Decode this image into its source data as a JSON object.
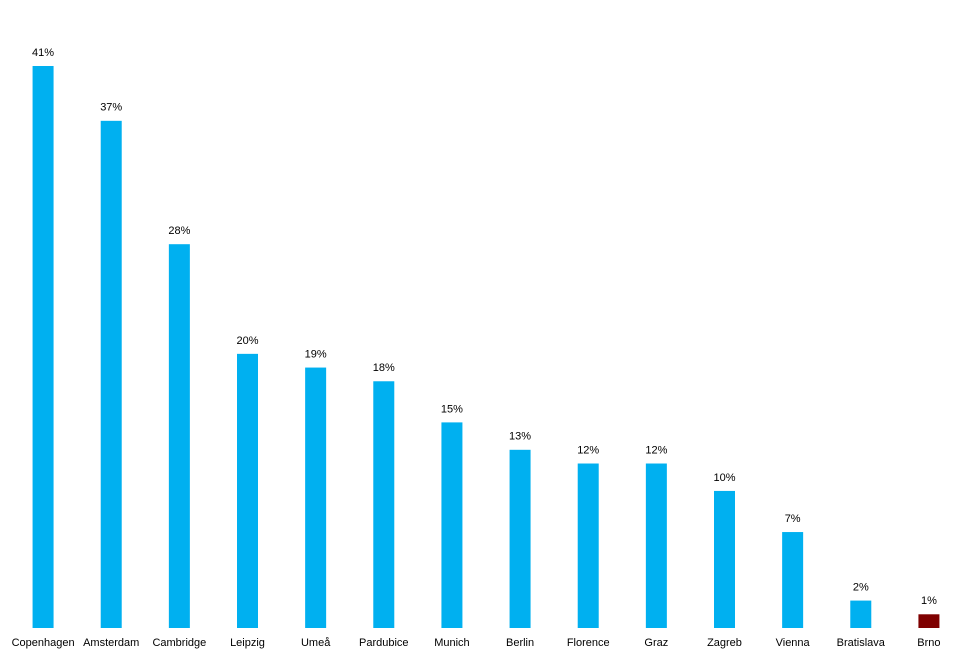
{
  "chart_data": {
    "type": "bar",
    "categories": [
      "Copenhagen",
      "Amsterdam",
      "Cambridge",
      "Leipzig",
      "Umeå",
      "Pardubice",
      "Munich",
      "Berlin",
      "Florence",
      "Graz",
      "Zagreb",
      "Vienna",
      "Bratislava",
      "Brno"
    ],
    "values": [
      41,
      37,
      28,
      20,
      19,
      18,
      15,
      13,
      12,
      12,
      10,
      7,
      2,
      1
    ],
    "value_labels": [
      "41%",
      "37%",
      "28%",
      "20%",
      "19%",
      "18%",
      "15%",
      "13%",
      "12%",
      "12%",
      "10%",
      "7%",
      "2%",
      "1%"
    ],
    "colors": [
      "#00b0f0",
      "#00b0f0",
      "#00b0f0",
      "#00b0f0",
      "#00b0f0",
      "#00b0f0",
      "#00b0f0",
      "#00b0f0",
      "#00b0f0",
      "#00b0f0",
      "#00b0f0",
      "#00b0f0",
      "#00b0f0",
      "#7f0000"
    ]
  }
}
